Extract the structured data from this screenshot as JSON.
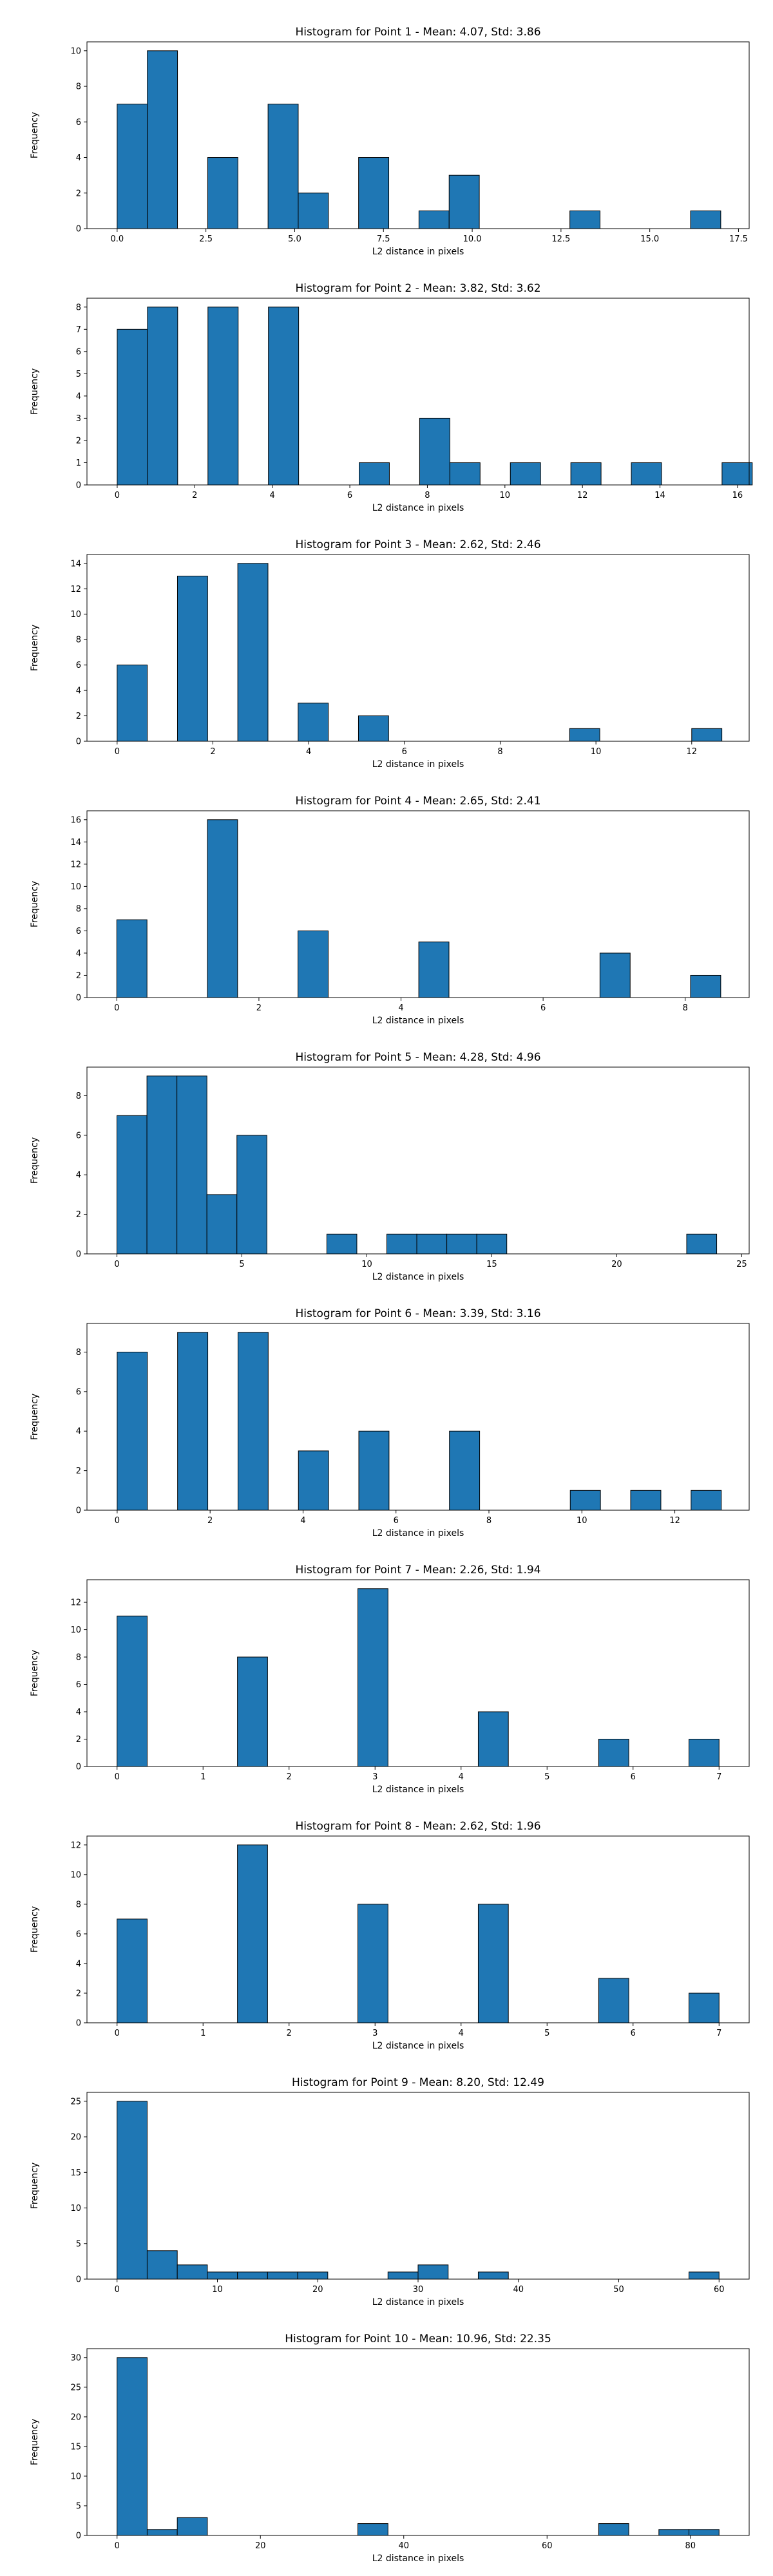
{
  "chart_data": [
    {
      "type": "bar",
      "title": "Histogram for Point 1 - Mean: 4.07, Std: 3.86",
      "xlabel": "L2 distance in pixels",
      "ylabel": "Frequency",
      "xlim": [
        -0.85,
        17.8
      ],
      "ylim": [
        0,
        10.5
      ],
      "xticks": [
        0.0,
        2.5,
        5.0,
        7.5,
        10.0,
        12.5,
        15.0,
        17.5
      ],
      "xtick_labels": [
        "0.0",
        "2.5",
        "5.0",
        "7.5",
        "10.0",
        "12.5",
        "15.0",
        "17.5"
      ],
      "yticks": [
        0,
        2,
        4,
        6,
        8,
        10
      ],
      "bin_width": 0.85,
      "bins": [
        {
          "x0": 0.0,
          "x1": 0.85,
          "value": 7
        },
        {
          "x0": 0.85,
          "x1": 1.7,
          "value": 10
        },
        {
          "x0": 2.55,
          "x1": 3.4,
          "value": 4
        },
        {
          "x0": 4.25,
          "x1": 5.1,
          "value": 7
        },
        {
          "x0": 5.1,
          "x1": 5.95,
          "value": 2
        },
        {
          "x0": 6.8,
          "x1": 7.65,
          "value": 4
        },
        {
          "x0": 8.5,
          "x1": 9.35,
          "value": 1
        },
        {
          "x0": 9.35,
          "x1": 10.2,
          "value": 3
        },
        {
          "x0": 12.75,
          "x1": 13.6,
          "value": 1
        },
        {
          "x0": 16.15,
          "x1": 17.0,
          "value": 1
        }
      ]
    },
    {
      "type": "bar",
      "title": "Histogram for Point 2 - Mean: 3.82, Std: 3.62",
      "xlabel": "L2 distance in pixels",
      "ylabel": "Frequency",
      "xlim": [
        -0.78,
        16.3
      ],
      "ylim": [
        0,
        8.4
      ],
      "xticks": [
        0,
        2,
        4,
        6,
        8,
        10,
        12,
        14,
        16
      ],
      "xtick_labels": [
        "0",
        "2",
        "4",
        "6",
        "8",
        "10",
        "12",
        "14",
        "16"
      ],
      "yticks": [
        0,
        1,
        2,
        3,
        4,
        5,
        6,
        7,
        8
      ],
      "bin_width": 0.78,
      "bins": [
        {
          "x0": 0.0,
          "x1": 0.78,
          "value": 7
        },
        {
          "x0": 0.78,
          "x1": 1.56,
          "value": 8
        },
        {
          "x0": 2.34,
          "x1": 3.12,
          "value": 8
        },
        {
          "x0": 3.9,
          "x1": 4.68,
          "value": 8
        },
        {
          "x0": 6.24,
          "x1": 7.02,
          "value": 1
        },
        {
          "x0": 7.8,
          "x1": 8.58,
          "value": 3
        },
        {
          "x0": 8.58,
          "x1": 9.36,
          "value": 1
        },
        {
          "x0": 10.14,
          "x1": 10.92,
          "value": 1
        },
        {
          "x0": 11.7,
          "x1": 12.48,
          "value": 1
        },
        {
          "x0": 13.26,
          "x1": 14.04,
          "value": 1
        },
        {
          "x0": 15.6,
          "x1": 16.38,
          "value": 1
        }
      ]
    },
    {
      "type": "bar",
      "title": "Histogram for Point 3 - Mean: 2.62, Std: 2.46",
      "xlabel": "L2 distance in pixels",
      "ylabel": "Frequency",
      "xlim": [
        -0.63,
        13.2
      ],
      "ylim": [
        0,
        14.7
      ],
      "xticks": [
        0,
        2,
        4,
        6,
        8,
        10,
        12
      ],
      "xtick_labels": [
        "0",
        "2",
        "4",
        "6",
        "8",
        "10",
        "12"
      ],
      "yticks": [
        0,
        2,
        4,
        6,
        8,
        10,
        12,
        14
      ],
      "bin_width": 0.63,
      "bins": [
        {
          "x0": 0.0,
          "x1": 0.63,
          "value": 6
        },
        {
          "x0": 1.26,
          "x1": 1.89,
          "value": 13
        },
        {
          "x0": 2.52,
          "x1": 3.15,
          "value": 14
        },
        {
          "x0": 3.78,
          "x1": 4.41,
          "value": 3
        },
        {
          "x0": 5.04,
          "x1": 5.67,
          "value": 2
        },
        {
          "x0": 9.45,
          "x1": 10.08,
          "value": 1
        },
        {
          "x0": 12.0,
          "x1": 12.63,
          "value": 1
        }
      ]
    },
    {
      "type": "bar",
      "title": "Histogram for Point 4 - Mean: 2.65, Std: 2.41",
      "xlabel": "L2 distance in pixels",
      "ylabel": "Frequency",
      "xlim": [
        -0.42,
        8.9
      ],
      "ylim": [
        0,
        16.8
      ],
      "xticks": [
        0,
        2,
        4,
        6,
        8
      ],
      "xtick_labels": [
        "0",
        "2",
        "4",
        "6",
        "8"
      ],
      "yticks": [
        0,
        2,
        4,
        6,
        8,
        10,
        12,
        14,
        16
      ],
      "bin_width": 0.425,
      "bins": [
        {
          "x0": 0.0,
          "x1": 0.425,
          "value": 7
        },
        {
          "x0": 1.275,
          "x1": 1.7,
          "value": 16
        },
        {
          "x0": 2.55,
          "x1": 2.975,
          "value": 6
        },
        {
          "x0": 4.25,
          "x1": 4.675,
          "value": 5
        },
        {
          "x0": 6.8,
          "x1": 7.225,
          "value": 4
        },
        {
          "x0": 8.075,
          "x1": 8.5,
          "value": 2
        }
      ]
    },
    {
      "type": "bar",
      "title": "Histogram for Point 5 - Mean: 4.28, Std: 4.96",
      "xlabel": "L2 distance in pixels",
      "ylabel": "Frequency",
      "xlim": [
        -1.2,
        25.3
      ],
      "ylim": [
        0,
        9.45
      ],
      "xticks": [
        0,
        5,
        10,
        15,
        20,
        25
      ],
      "xtick_labels": [
        "0",
        "5",
        "10",
        "15",
        "20",
        "25"
      ],
      "yticks": [
        0,
        2,
        4,
        6,
        8
      ],
      "bin_width": 1.2,
      "bins": [
        {
          "x0": 0.0,
          "x1": 1.2,
          "value": 7
        },
        {
          "x0": 1.2,
          "x1": 2.4,
          "value": 9
        },
        {
          "x0": 2.4,
          "x1": 3.6,
          "value": 9
        },
        {
          "x0": 3.6,
          "x1": 4.8,
          "value": 3
        },
        {
          "x0": 4.8,
          "x1": 6.0,
          "value": 6
        },
        {
          "x0": 8.4,
          "x1": 9.6,
          "value": 1
        },
        {
          "x0": 10.8,
          "x1": 12.0,
          "value": 1
        },
        {
          "x0": 12.0,
          "x1": 13.2,
          "value": 1
        },
        {
          "x0": 13.2,
          "x1": 14.4,
          "value": 1
        },
        {
          "x0": 14.4,
          "x1": 15.6,
          "value": 1
        },
        {
          "x0": 22.8,
          "x1": 24.0,
          "value": 1
        }
      ]
    },
    {
      "type": "bar",
      "title": "Histogram for Point 6 - Mean: 3.39, Std: 3.16",
      "xlabel": "L2 distance in pixels",
      "ylabel": "Frequency",
      "xlim": [
        -0.65,
        13.6
      ],
      "ylim": [
        0,
        9.45
      ],
      "xticks": [
        0,
        2,
        4,
        6,
        8,
        10,
        12
      ],
      "xtick_labels": [
        "0",
        "2",
        "4",
        "6",
        "8",
        "10",
        "12"
      ],
      "yticks": [
        0,
        2,
        4,
        6,
        8
      ],
      "bin_width": 0.65,
      "bins": [
        {
          "x0": 0.0,
          "x1": 0.65,
          "value": 8
        },
        {
          "x0": 1.3,
          "x1": 1.95,
          "value": 9
        },
        {
          "x0": 2.6,
          "x1": 3.25,
          "value": 9
        },
        {
          "x0": 3.9,
          "x1": 4.55,
          "value": 3
        },
        {
          "x0": 5.2,
          "x1": 5.85,
          "value": 4
        },
        {
          "x0": 7.15,
          "x1": 7.8,
          "value": 4
        },
        {
          "x0": 9.75,
          "x1": 10.4,
          "value": 1
        },
        {
          "x0": 11.05,
          "x1": 11.7,
          "value": 1
        },
        {
          "x0": 12.35,
          "x1": 13.0,
          "value": 1
        }
      ]
    },
    {
      "type": "bar",
      "title": "Histogram for Point 7 - Mean: 2.26, Std: 1.94",
      "xlabel": "L2 distance in pixels",
      "ylabel": "Frequency",
      "xlim": [
        -0.35,
        7.35
      ],
      "ylim": [
        0,
        13.65
      ],
      "xticks": [
        0,
        1,
        2,
        3,
        4,
        5,
        6,
        7
      ],
      "xtick_labels": [
        "0",
        "1",
        "2",
        "3",
        "4",
        "5",
        "6",
        "7"
      ],
      "yticks": [
        0,
        2,
        4,
        6,
        8,
        10,
        12
      ],
      "bin_width": 0.35,
      "bins": [
        {
          "x0": 0.0,
          "x1": 0.35,
          "value": 11
        },
        {
          "x0": 1.4,
          "x1": 1.75,
          "value": 8
        },
        {
          "x0": 2.8,
          "x1": 3.15,
          "value": 13
        },
        {
          "x0": 4.2,
          "x1": 4.55,
          "value": 4
        },
        {
          "x0": 5.6,
          "x1": 5.95,
          "value": 2
        },
        {
          "x0": 6.65,
          "x1": 7.0,
          "value": 2
        }
      ]
    },
    {
      "type": "bar",
      "title": "Histogram for Point 8 - Mean: 2.62, Std: 1.96",
      "xlabel": "L2 distance in pixels",
      "ylabel": "Frequency",
      "xlim": [
        -0.35,
        7.35
      ],
      "ylim": [
        0,
        12.6
      ],
      "xticks": [
        0,
        1,
        2,
        3,
        4,
        5,
        6,
        7
      ],
      "xtick_labels": [
        "0",
        "1",
        "2",
        "3",
        "4",
        "5",
        "6",
        "7"
      ],
      "yticks": [
        0,
        2,
        4,
        6,
        8,
        10,
        12
      ],
      "bin_width": 0.35,
      "bins": [
        {
          "x0": 0.0,
          "x1": 0.35,
          "value": 7
        },
        {
          "x0": 1.4,
          "x1": 1.75,
          "value": 12
        },
        {
          "x0": 2.8,
          "x1": 3.15,
          "value": 8
        },
        {
          "x0": 4.2,
          "x1": 4.55,
          "value": 8
        },
        {
          "x0": 5.6,
          "x1": 5.95,
          "value": 3
        },
        {
          "x0": 6.65,
          "x1": 7.0,
          "value": 2
        }
      ]
    },
    {
      "type": "bar",
      "title": "Histogram for Point 9 - Mean: 8.20, Std: 12.49",
      "xlabel": "L2 distance in pixels",
      "ylabel": "Frequency",
      "xlim": [
        -3.0,
        63.0
      ],
      "ylim": [
        0,
        26.25
      ],
      "xticks": [
        0,
        10,
        20,
        30,
        40,
        50,
        60
      ],
      "xtick_labels": [
        "0",
        "10",
        "20",
        "30",
        "40",
        "50",
        "60"
      ],
      "yticks": [
        0,
        5,
        10,
        15,
        20,
        25
      ],
      "bin_width": 3.0,
      "bins": [
        {
          "x0": 0.0,
          "x1": 3.0,
          "value": 25
        },
        {
          "x0": 3.0,
          "x1": 6.0,
          "value": 4
        },
        {
          "x0": 6.0,
          "x1": 9.0,
          "value": 2
        },
        {
          "x0": 9.0,
          "x1": 12.0,
          "value": 1
        },
        {
          "x0": 12.0,
          "x1": 15.0,
          "value": 1
        },
        {
          "x0": 15.0,
          "x1": 18.0,
          "value": 1
        },
        {
          "x0": 18.0,
          "x1": 21.0,
          "value": 1
        },
        {
          "x0": 27.0,
          "x1": 30.0,
          "value": 1
        },
        {
          "x0": 30.0,
          "x1": 33.0,
          "value": 2
        },
        {
          "x0": 36.0,
          "x1": 39.0,
          "value": 1
        },
        {
          "x0": 57.0,
          "x1": 60.0,
          "value": 1
        }
      ]
    },
    {
      "type": "bar",
      "title": "Histogram for Point 10 - Mean: 10.96, Std: 22.35",
      "xlabel": "L2 distance in pixels",
      "ylabel": "Frequency",
      "xlim": [
        -4.2,
        88.2
      ],
      "ylim": [
        0,
        31.5
      ],
      "xticks": [
        0,
        20,
        40,
        60,
        80
      ],
      "xtick_labels": [
        "0",
        "20",
        "40",
        "60",
        "80"
      ],
      "yticks": [
        0,
        5,
        10,
        15,
        20,
        25,
        30
      ],
      "bin_width": 4.2,
      "bins": [
        {
          "x0": 0.0,
          "x1": 4.2,
          "value": 30
        },
        {
          "x0": 4.2,
          "x1": 8.4,
          "value": 1
        },
        {
          "x0": 8.4,
          "x1": 12.6,
          "value": 3
        },
        {
          "x0": 33.6,
          "x1": 37.8,
          "value": 2
        },
        {
          "x0": 67.2,
          "x1": 71.4,
          "value": 2
        },
        {
          "x0": 75.6,
          "x1": 79.8,
          "value": 1
        },
        {
          "x0": 79.8,
          "x1": 84.0,
          "value": 1
        }
      ]
    }
  ],
  "colors": {
    "bar_fill": "#1f77b4",
    "bar_edge": "#000000",
    "axes": "#000000",
    "background": "#ffffff"
  }
}
